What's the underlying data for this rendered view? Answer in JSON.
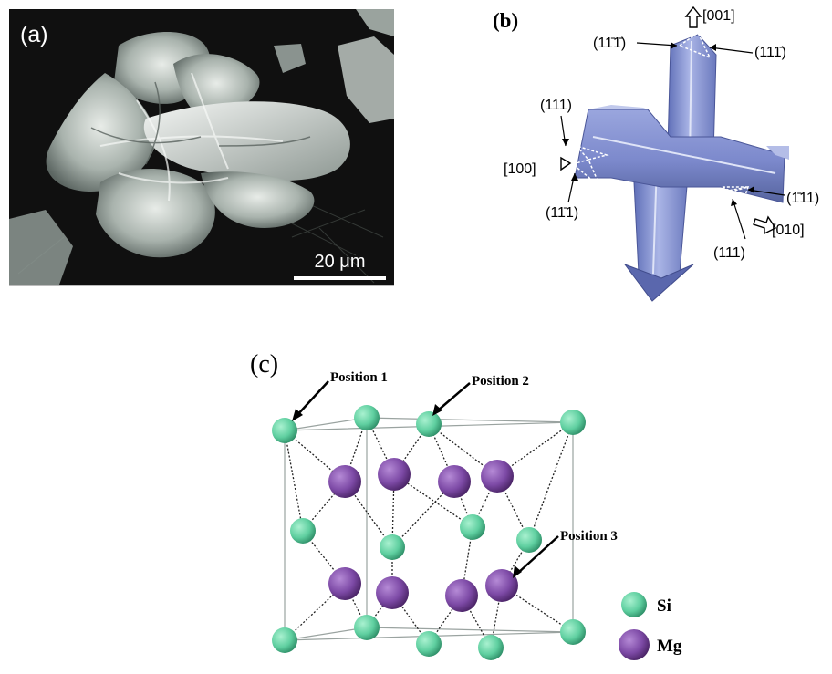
{
  "panel_a": {
    "label": "(a)",
    "scale_bar": "20 μm"
  },
  "panel_b": {
    "label": "(b)",
    "directions": {
      "top": "[001]",
      "left": "[100]",
      "right": "[010]"
    },
    "facets": {
      "top_left": "(11̄1̄)",
      "top_right": "(111̄)",
      "left_upper": "(111)",
      "left_lower": "(11̄1)",
      "right_upper": "(1̄11)",
      "right_lower": "(111)"
    }
  },
  "panel_c": {
    "label": "(c)",
    "positions": [
      "Position 1",
      "Position 2",
      "Position 3"
    ],
    "legend": [
      {
        "label": "Si",
        "color": "#5fcfa0"
      },
      {
        "label": "Mg",
        "color": "#7d4aa6"
      }
    ]
  }
}
